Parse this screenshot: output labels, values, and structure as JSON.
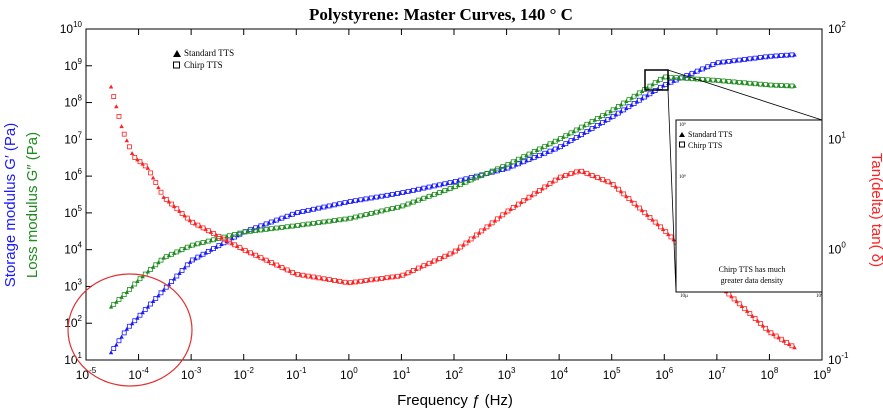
{
  "chart_data": {
    "type": "scatter",
    "title": "Polystyrene: Master Curves, 140 ° C",
    "xlabel": "Frequency ƒ (Hz)",
    "ylabel_left_storage": "Storage modulus G′ (Pa)",
    "ylabel_left_loss": "Loss modulus G″ (Pa)",
    "ylabel_right": "Tan(delta) tan( δ)",
    "x_scale": "log",
    "xlim": [
      1e-05,
      1000000000.0
    ],
    "ylim_left": [
      10.0,
      10000000000.0
    ],
    "ylim_right": [
      0.1,
      100
    ],
    "x_ticks": [
      "10-5",
      "10-4",
      "10-3",
      "10-2",
      "10-1",
      "100",
      "101",
      "102",
      "103",
      "104",
      "105",
      "106",
      "107",
      "108",
      "109"
    ],
    "y_left_ticks": [
      "101",
      "102",
      "103",
      "104",
      "105",
      "106",
      "107",
      "108",
      "109",
      "1010"
    ],
    "y_right_ticks": [
      "10-1",
      "100",
      "101",
      "102"
    ],
    "colors": {
      "storage": "#1a1aff",
      "loss": "#1e8c1e",
      "tan": "#ff2020",
      "circle": "#e03030"
    },
    "legend": [
      {
        "label": "Standard TTS",
        "marker": "filled-triangle"
      },
      {
        "label": "Chirp TTS",
        "marker": "open-square"
      }
    ],
    "series": [
      {
        "name": "storage",
        "axis": "left",
        "x": [
          3e-05,
          6e-05,
          0.0001,
          0.0003,
          0.001,
          0.01,
          0.1,
          1,
          10,
          100,
          1000,
          10000.0,
          100000.0,
          1000000.0,
          10000000.0,
          100000000.0,
          300000000.0
        ],
        "y": [
          16.0,
          70.0,
          150.0,
          800.0,
          5000.0,
          30000.0,
          100000.0,
          200000.0,
          350000.0,
          700000.0,
          1600000.0,
          6000000.0,
          40000000.0,
          300000000.0,
          1200000000.0,
          1800000000.0,
          2000000000.0
        ]
      },
      {
        "name": "loss",
        "axis": "left",
        "x": [
          3e-05,
          6e-05,
          0.0001,
          0.0003,
          0.001,
          0.01,
          0.1,
          1,
          10,
          100,
          1000,
          10000.0,
          100000.0,
          1000000.0,
          10000000.0,
          100000000.0,
          300000000.0
        ],
        "y": [
          280.0,
          700.0,
          1500.0,
          6000.0,
          13000.0,
          30000.0,
          45000.0,
          70000.0,
          150000.0,
          500000.0,
          2000000.0,
          10000000.0,
          60000000.0,
          500000000.0,
          400000000.0,
          300000000.0,
          280000000.0
        ]
      },
      {
        "name": "tan",
        "axis": "right",
        "x": [
          3e-05,
          5e-05,
          8e-05,
          0.00015,
          0.0003,
          0.001,
          0.01,
          0.1,
          1,
          10,
          100,
          1000,
          10000.0,
          25000.0,
          100000.0,
          1000000.0,
          10000000.0,
          100000000.0,
          300000000.0
        ],
        "y": [
          30,
          12,
          7,
          5.5,
          3,
          1.8,
          1.0,
          0.6,
          0.5,
          0.58,
          0.95,
          2.2,
          4.5,
          5.2,
          4.0,
          1.5,
          0.5,
          0.18,
          0.13
        ]
      }
    ],
    "inset": {
      "legend": [
        {
          "label": "Standard TTS",
          "marker": "filled-triangle"
        },
        {
          "label": "Chirp TTS",
          "marker": "open-square"
        }
      ],
      "note_line1": "Chirp TTS has much",
      "note_line2": "greater data density",
      "x_tick_left": "10µ",
      "x_tick_right": "10⁶",
      "y_tick_top": "10⁹",
      "y_tick_bottom": "10⁸"
    }
  }
}
